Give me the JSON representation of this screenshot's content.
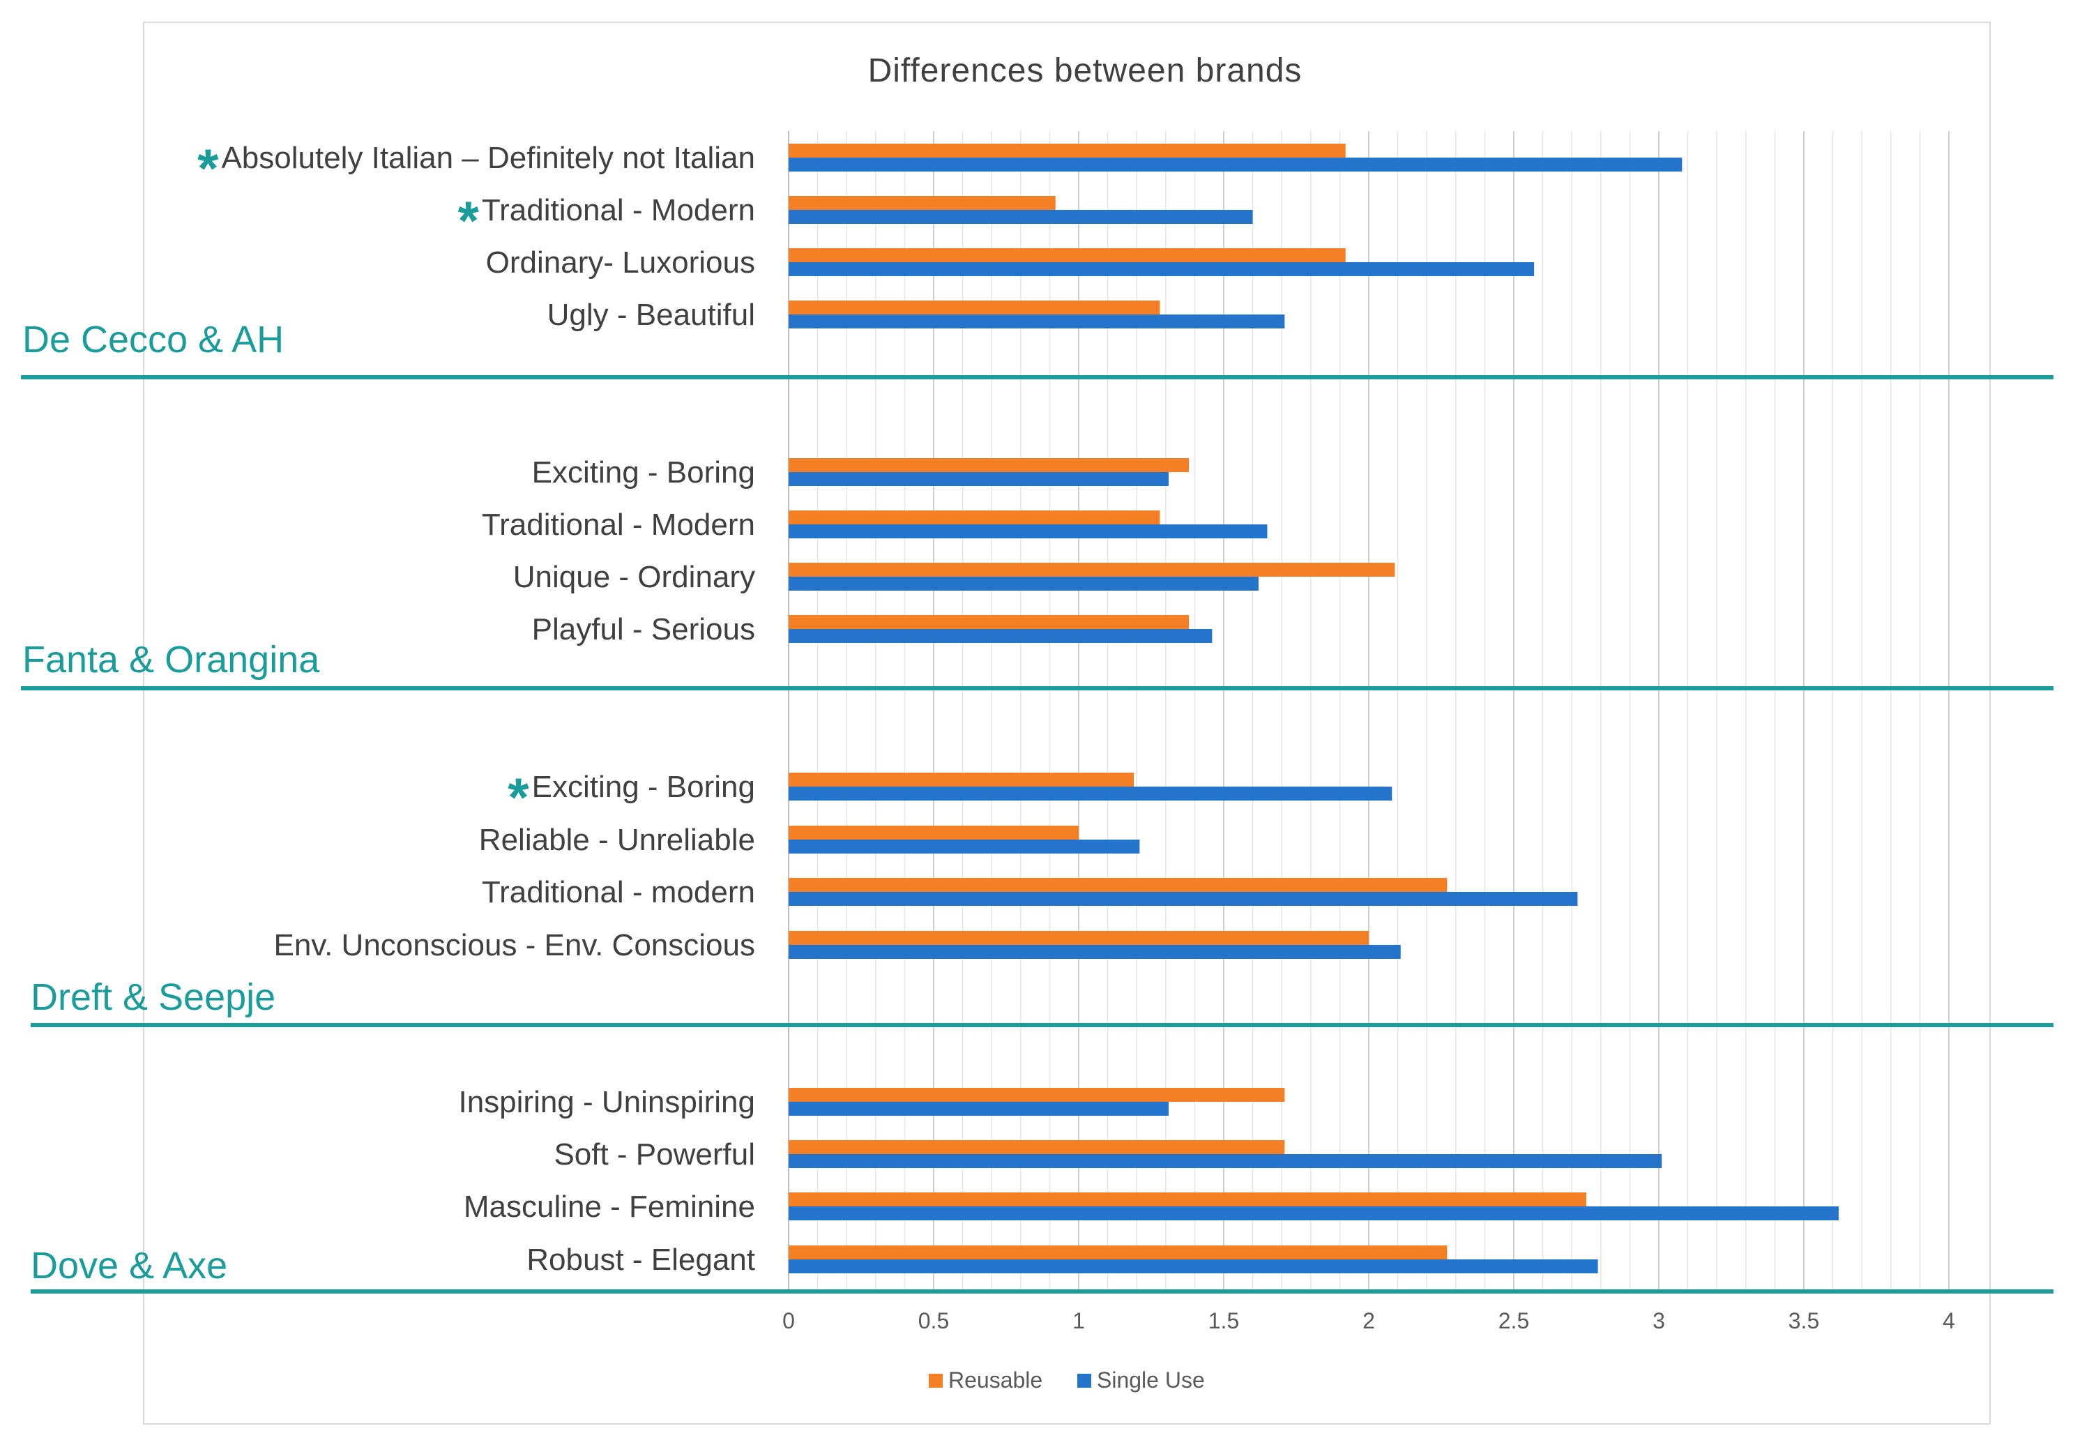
{
  "chart_data": {
    "type": "bar",
    "orientation": "horizontal",
    "title": "Differences between brands",
    "xlim": [
      0,
      4
    ],
    "x_ticks": [
      "0",
      "0.5",
      "1",
      "1.5",
      "2",
      "2.5",
      "3",
      "3.5",
      "4"
    ],
    "grid": true,
    "legend_position": "bottom",
    "series": [
      {
        "name": "Reusable",
        "color": "#f47f25"
      },
      {
        "name": "Single Use",
        "color": "#2474cc"
      }
    ],
    "groups": [
      {
        "name": "De Cecco & AH",
        "items": [
          {
            "label": "Absolutely Italian – Definitely not Italian",
            "significant": true,
            "reusable": 1.92,
            "single_use": 3.08
          },
          {
            "label": "Traditional - Modern",
            "significant": true,
            "reusable": 0.92,
            "single_use": 1.6
          },
          {
            "label": "Ordinary- Luxorious",
            "significant": false,
            "reusable": 1.92,
            "single_use": 2.57
          },
          {
            "label": "Ugly - Beautiful",
            "significant": false,
            "reusable": 1.28,
            "single_use": 1.71
          }
        ]
      },
      {
        "name": "Fanta & Orangina",
        "items": [
          {
            "label": "Exciting - Boring",
            "significant": false,
            "reusable": 1.38,
            "single_use": 1.31
          },
          {
            "label": "Traditional - Modern",
            "significant": false,
            "reusable": 1.28,
            "single_use": 1.65
          },
          {
            "label": "Unique - Ordinary",
            "significant": false,
            "reusable": 2.09,
            "single_use": 1.62
          },
          {
            "label": "Playful - Serious",
            "significant": false,
            "reusable": 1.38,
            "single_use": 1.46
          }
        ]
      },
      {
        "name": "Dreft & Seepje",
        "items": [
          {
            "label": "Exciting - Boring",
            "significant": true,
            "reusable": 1.19,
            "single_use": 2.08
          },
          {
            "label": "Reliable - Unreliable",
            "significant": false,
            "reusable": 1.0,
            "single_use": 1.21
          },
          {
            "label": "Traditional - modern",
            "significant": false,
            "reusable": 2.27,
            "single_use": 2.72
          },
          {
            "label": "Env. Unconscious  - Env. Conscious",
            "significant": false,
            "reusable": 2.0,
            "single_use": 2.11
          }
        ]
      },
      {
        "name": "Dove & Axe",
        "items": [
          {
            "label": "Inspiring - Uninspiring",
            "significant": false,
            "reusable": 1.71,
            "single_use": 1.31
          },
          {
            "label": "Soft - Powerful",
            "significant": false,
            "reusable": 1.71,
            "single_use": 3.01
          },
          {
            "label": "Masculine - Feminine",
            "significant": false,
            "reusable": 2.75,
            "single_use": 3.62
          },
          {
            "label": "Robust - Elegant",
            "significant": false,
            "reusable": 2.27,
            "single_use": 2.79
          }
        ]
      }
    ],
    "significance_marker": "*"
  }
}
